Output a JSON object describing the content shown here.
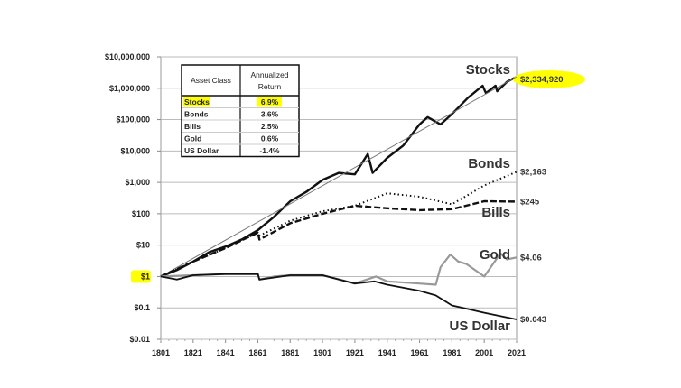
{
  "chart_data": {
    "type": "line",
    "title": "",
    "xlabel": "",
    "ylabel": "",
    "y_scale": "log",
    "xlim": [
      1801,
      2021
    ],
    "ylim": [
      0.01,
      10000000
    ],
    "grid": true,
    "x_ticks": [
      "1801",
      "1821",
      "1841",
      "1861",
      "1881",
      "1901",
      "1921",
      "1941",
      "1961",
      "1981",
      "2001",
      "2021"
    ],
    "y_ticks": [
      "$10,000,000",
      "$1,000,000",
      "$100,000",
      "$10,000",
      "$1,000",
      "$100",
      "$10",
      "$1",
      "$0.1",
      "$0.01"
    ],
    "highlight_color": "#ffff00",
    "series": [
      {
        "name": "Stocks",
        "end_label": "$2,334,920",
        "style": "solid-thick",
        "color": "#111111",
        "x": [
          1801,
          1811,
          1821,
          1831,
          1841,
          1851,
          1861,
          1871,
          1881,
          1891,
          1901,
          1911,
          1921,
          1929,
          1932,
          1941,
          1951,
          1961,
          1966,
          1974,
          1981,
          1991,
          2000,
          2002,
          2008,
          2009,
          2015,
          2021
        ],
        "y": [
          1,
          1.6,
          3,
          6,
          9,
          15,
          30,
          80,
          250,
          500,
          1200,
          2000,
          1800,
          8000,
          2000,
          6000,
          15000,
          70000,
          120000,
          70000,
          150000,
          500000,
          1200000,
          700000,
          1200000,
          800000,
          1600000,
          2334920
        ]
      },
      {
        "style": "solid-thin",
        "color": "#777777",
        "x": [
          1801,
          2021
        ],
        "y": [
          1,
          2334920
        ]
      },
      {
        "name": "Bonds",
        "end_label": "$2,163",
        "style": "dotted",
        "color": "#111111",
        "x": [
          1801,
          1821,
          1841,
          1861,
          1862,
          1881,
          1901,
          1921,
          1941,
          1961,
          1981,
          2001,
          2021
        ],
        "y": [
          1,
          3,
          8,
          25,
          20,
          60,
          120,
          180,
          450,
          350,
          200,
          800,
          2163
        ]
      },
      {
        "name": "Bills",
        "end_label": "$245",
        "style": "dashed",
        "color": "#111111",
        "x": [
          1801,
          1821,
          1841,
          1861,
          1862,
          1881,
          1901,
          1921,
          1941,
          1961,
          1981,
          2001,
          2021
        ],
        "y": [
          1,
          3,
          8,
          25,
          15,
          50,
          100,
          180,
          150,
          130,
          140,
          250,
          245
        ]
      },
      {
        "name": "Gold",
        "end_label": "$4.06",
        "style": "solid-gray",
        "color": "#999999",
        "x": [
          1801,
          1821,
          1841,
          1861,
          1862,
          1871,
          1881,
          1901,
          1921,
          1934,
          1941,
          1961,
          1971,
          1974,
          1980,
          1985,
          1990,
          2001,
          2011,
          2015,
          2021
        ],
        "y": [
          1,
          1.1,
          1.2,
          1.2,
          0.8,
          1,
          1.1,
          1.1,
          0.6,
          1,
          0.7,
          0.6,
          0.55,
          2,
          5,
          3,
          2.5,
          1,
          5.5,
          3.5,
          4.06
        ]
      },
      {
        "name": "US Dollar",
        "end_label": "$0.043",
        "style": "solid",
        "color": "#111111",
        "x": [
          1801,
          1811,
          1821,
          1841,
          1861,
          1862,
          1881,
          1901,
          1921,
          1933,
          1941,
          1961,
          1971,
          1981,
          2001,
          2021
        ],
        "y": [
          1,
          0.8,
          1.1,
          1.2,
          1.2,
          0.8,
          1.1,
          1.1,
          0.6,
          0.7,
          0.55,
          0.35,
          0.25,
          0.12,
          0.07,
          0.043
        ]
      }
    ],
    "table": {
      "headers": [
        "Asset Class",
        "Annualized Return"
      ],
      "rows": [
        [
          "Stocks",
          "6.9%"
        ],
        [
          "Bonds",
          "3.6%"
        ],
        [
          "Bills",
          "2.5%"
        ],
        [
          "Gold",
          "0.6%"
        ],
        [
          "US Dollar",
          "-1.4%"
        ]
      ]
    },
    "start_label": "$1"
  }
}
